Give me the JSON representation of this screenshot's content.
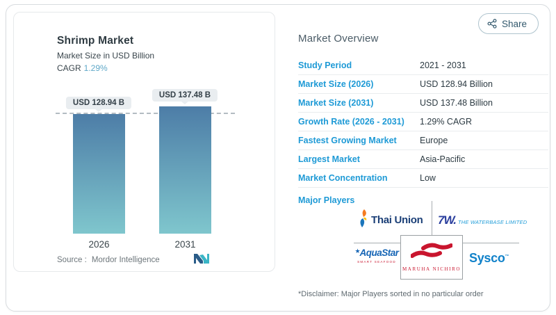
{
  "share": {
    "label": "Share"
  },
  "chart_panel": {
    "title": "Shrimp Market",
    "subtitle": "Market Size in USD Billion",
    "cagr_label": "CAGR",
    "cagr_value": "1.29%",
    "source_label": "Source :",
    "source_value": "Mordor Intelligence"
  },
  "chart_data": {
    "type": "bar",
    "title": "Shrimp Market",
    "ylabel": "Market Size in USD Billion",
    "categories": [
      "2026",
      "2031"
    ],
    "values": [
      128.94,
      137.48
    ],
    "value_labels": [
      "USD 128.94 B",
      "USD 137.48 B"
    ],
    "ylim": [
      0,
      137.48
    ],
    "dashed_reference_value": 128.94,
    "bar_gradient_top": "#4d7da7",
    "bar_gradient_bottom": "#7fc6cd",
    "grid": false,
    "legend": "none"
  },
  "overview": {
    "heading": "Market Overview",
    "rows": [
      {
        "label": "Study Period",
        "value": "2021 - 2031"
      },
      {
        "label": "Market Size (2026)",
        "value": "USD 128.94 Billion"
      },
      {
        "label": "Market Size (2031)",
        "value": "USD 137.48 Billion"
      },
      {
        "label": "Growth Rate (2026 - 2031)",
        "value": "1.29% CAGR"
      },
      {
        "label": "Fastest Growing Market",
        "value": "Europe"
      },
      {
        "label": "Largest Market",
        "value": "Asia-Pacific"
      },
      {
        "label": "Market Concentration",
        "value": "Low"
      }
    ],
    "major_players_label": "Major Players",
    "disclaimer": "*Disclaimer: Major Players sorted in no particular order"
  },
  "logos": {
    "thai_union": "Thai Union",
    "waterbase_mark": "7W.",
    "waterbase_text": "THE WATERBASE LIMITED",
    "aquastar": "AquaStar",
    "aquastar_sub": "SMART SEAFOOD",
    "maruha": "MARUHA NICHIRO",
    "sysco": "Sysco"
  },
  "colors": {
    "label_blue": "#1e9ad6",
    "value_text": "#2c3a42",
    "cagr_blue": "#5fa8c8",
    "share_text": "#33596d",
    "mordor_dark": "#2a5c88",
    "mordor_teal": "#3ab5c6"
  }
}
